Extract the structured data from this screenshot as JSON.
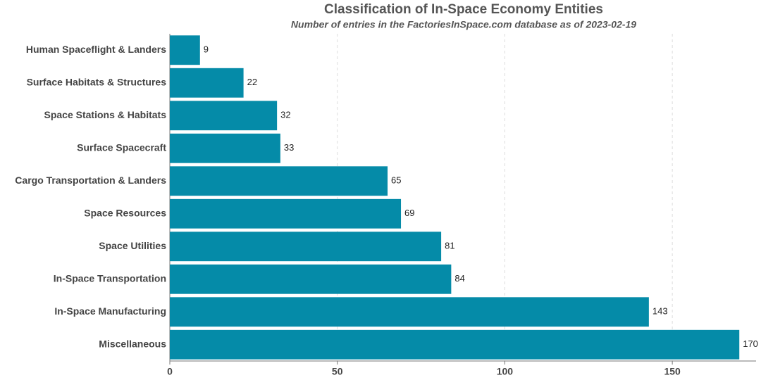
{
  "chart_data": {
    "type": "bar",
    "orientation": "horizontal",
    "title": "Classification of In-Space Economy Entities",
    "subtitle": "Number of entries in the FactoriesInSpace.com database as of 2023-02-19",
    "categories": [
      "Human Spaceflight & Landers",
      "Surface Habitats & Structures",
      "Space Stations & Habitats",
      "Surface Spacecraft",
      "Cargo Transportation & Landers",
      "Space Resources",
      "Space Utilities",
      "In-Space Transportation",
      "In-Space Manufacturing",
      "Miscellaneous"
    ],
    "values": [
      9,
      22,
      32,
      33,
      65,
      69,
      81,
      84,
      143,
      170
    ],
    "color": "#058ba8",
    "xlim": [
      0,
      175
    ],
    "xticks": [
      0,
      50,
      100,
      150
    ],
    "grid": true
  }
}
